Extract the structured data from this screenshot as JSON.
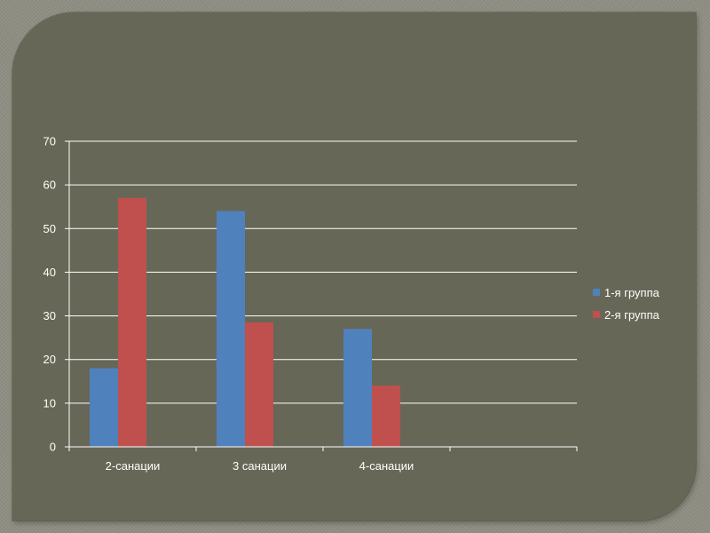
{
  "chart_data": {
    "type": "bar",
    "title": "",
    "xlabel": "",
    "ylabel": "",
    "categories": [
      "2-санации",
      "3 санации",
      "4-санации",
      ""
    ],
    "series": [
      {
        "name": "1-я группа",
        "color": "#4f81bd",
        "values": [
          18,
          54,
          27,
          null
        ]
      },
      {
        "name": "2-я группа",
        "color": "#c0504d",
        "values": [
          57,
          28.5,
          14,
          null
        ]
      }
    ],
    "ylim": [
      0,
      70
    ],
    "yticks": [
      0,
      10,
      20,
      30,
      40,
      50,
      60,
      70
    ],
    "grid": true,
    "legend_position": "right"
  }
}
